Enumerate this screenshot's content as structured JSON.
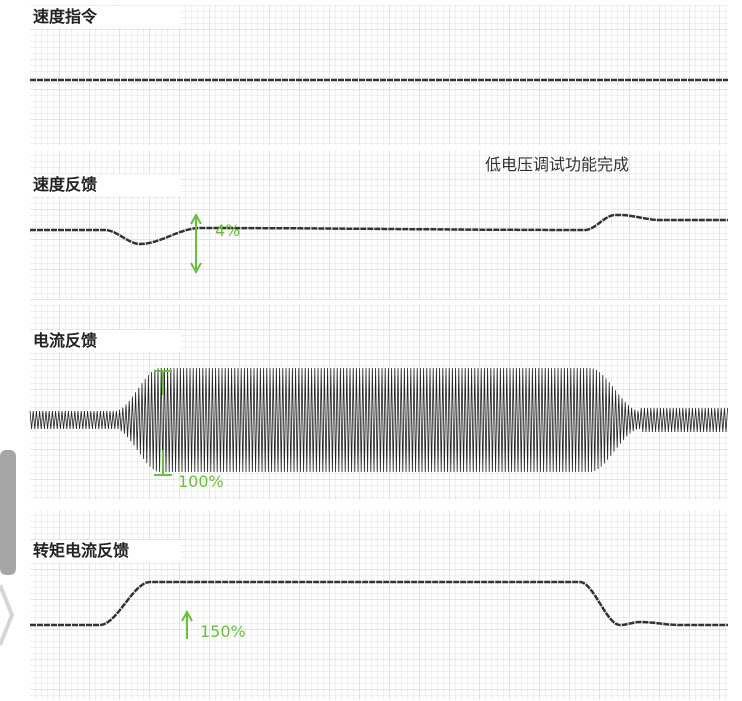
{
  "status": "低电压调试功能完成",
  "panels": [
    {
      "title": "速度指令"
    },
    {
      "title": "速度反馈",
      "annotation": "4%"
    },
    {
      "title": "电流反馈",
      "annotation": "100%"
    },
    {
      "title": "转矩电流反馈",
      "annotation": "150%"
    }
  ]
}
